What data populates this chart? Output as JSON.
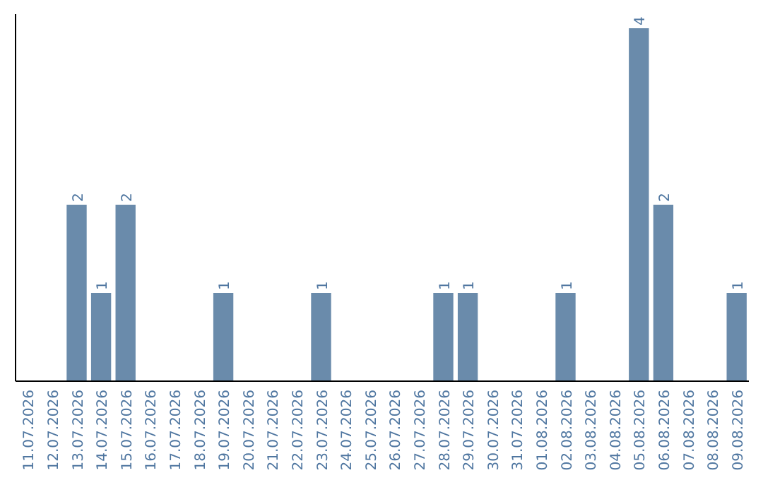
{
  "chart_data": {
    "type": "bar",
    "categories": [
      "11.07.2026",
      "12.07.2026",
      "13.07.2026",
      "14.07.2026",
      "15.07.2026",
      "16.07.2026",
      "17.07.2026",
      "18.07.2026",
      "19.07.2026",
      "20.07.2026",
      "21.07.2026",
      "22.07.2026",
      "23.07.2026",
      "24.07.2026",
      "25.07.2026",
      "26.07.2026",
      "27.07.2026",
      "28.07.2026",
      "29.07.2026",
      "30.07.2026",
      "31.07.2026",
      "01.08.2026",
      "02.08.2026",
      "03.08.2026",
      "04.08.2026",
      "05.08.2026",
      "06.08.2026",
      "07.08.2026",
      "08.08.2026",
      "09.08.2026"
    ],
    "values": [
      0,
      0,
      2,
      1,
      2,
      0,
      0,
      0,
      1,
      0,
      0,
      0,
      1,
      0,
      0,
      0,
      0,
      1,
      1,
      0,
      0,
      0,
      1,
      0,
      0,
      4,
      2,
      0,
      0,
      1
    ],
    "value_labels": [
      null,
      null,
      "2",
      "1",
      "2",
      null,
      null,
      null,
      "1",
      null,
      null,
      null,
      "1",
      null,
      null,
      null,
      null,
      "1",
      "1",
      null,
      null,
      null,
      "1",
      null,
      null,
      "4",
      "2",
      null,
      null,
      "1"
    ],
    "color": "#6a8bab"
  }
}
